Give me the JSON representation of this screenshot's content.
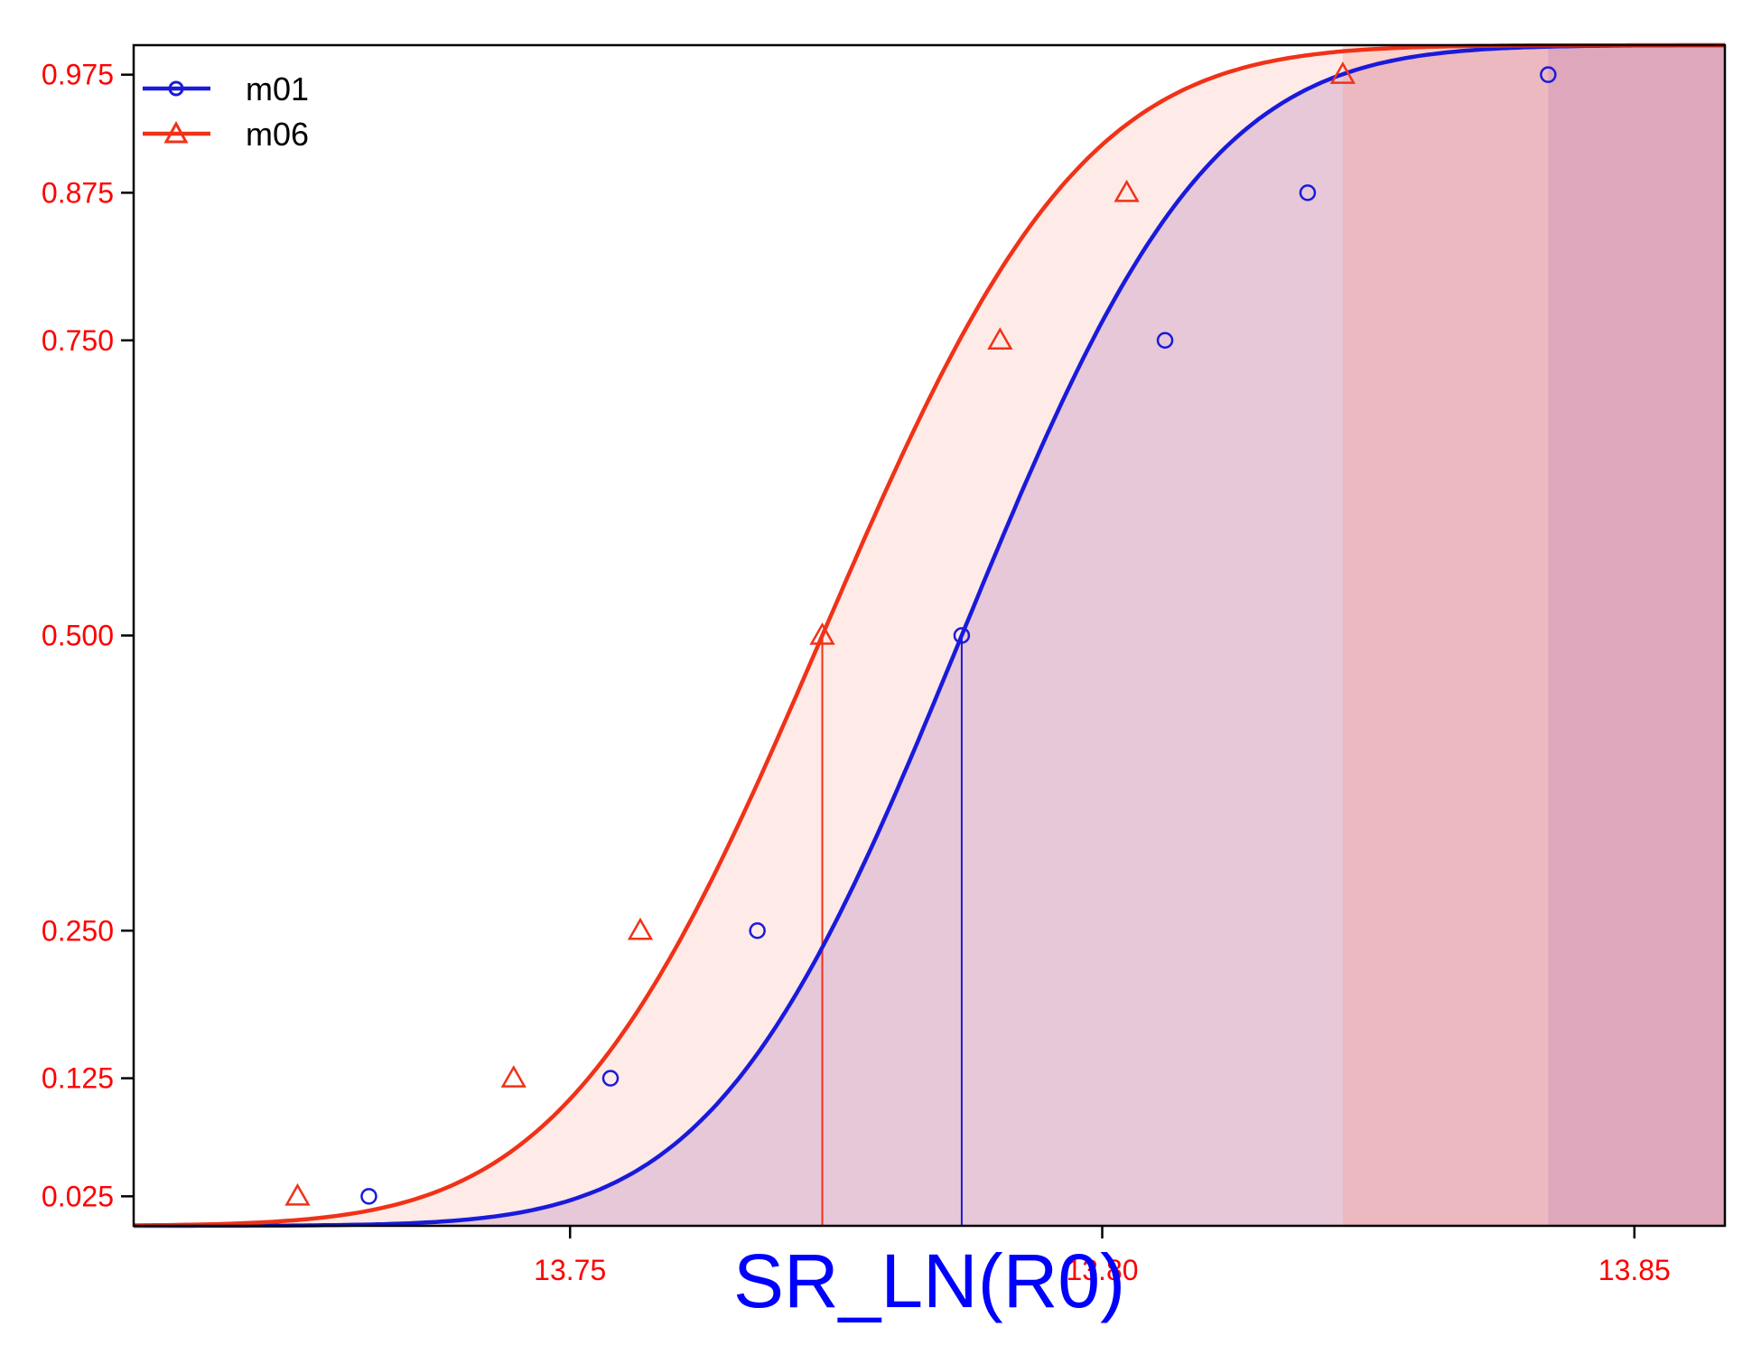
{
  "chart_data": {
    "type": "line",
    "title": "",
    "xlabel": "SR_LN(R0)",
    "ylabel": "",
    "xlim": [
      13.709,
      13.8585
    ],
    "ylim": [
      0,
      1
    ],
    "x_ticks": [
      "13.75",
      "13.80",
      "13.85"
    ],
    "x_tick_values": [
      13.75,
      13.8,
      13.85
    ],
    "y_ticks": [
      "0.025",
      "0.125",
      "0.250",
      "0.500",
      "0.750",
      "0.875",
      "0.975"
    ],
    "y_tick_values": [
      0.025,
      0.125,
      0.25,
      0.5,
      0.75,
      0.875,
      0.975
    ],
    "grid": false,
    "legend_position": "top-left",
    "series": [
      {
        "name": "m01",
        "color": "#1a1adb",
        "marker": "circle",
        "median": 13.7868,
        "sd": 0.0182,
        "points": [
          {
            "x": 13.7311,
            "y": 0.025
          },
          {
            "x": 13.7538,
            "y": 0.125
          },
          {
            "x": 13.7676,
            "y": 0.25
          },
          {
            "x": 13.7868,
            "y": 0.5
          },
          {
            "x": 13.8059,
            "y": 0.75
          },
          {
            "x": 13.8193,
            "y": 0.875
          },
          {
            "x": 13.8419,
            "y": 0.975
          }
        ],
        "band_color": "#9b6dbe"
      },
      {
        "name": "m06",
        "color": "#f03218",
        "marker": "triangle",
        "median": 13.7737,
        "sd": 0.0191,
        "points": [
          {
            "x": 13.7244,
            "y": 0.025
          },
          {
            "x": 13.7447,
            "y": 0.125
          },
          {
            "x": 13.7566,
            "y": 0.25
          },
          {
            "x": 13.7737,
            "y": 0.5
          },
          {
            "x": 13.7904,
            "y": 0.75
          },
          {
            "x": 13.8023,
            "y": 0.875
          },
          {
            "x": 13.8226,
            "y": 0.975
          }
        ],
        "band_color": "#fb8a78"
      }
    ]
  }
}
